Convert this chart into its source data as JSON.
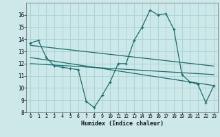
{
  "xlabel": "Humidex (Indice chaleur)",
  "background_color": "#cce8e8",
  "line_color": "#1a6b6b",
  "grid_color": "#aad4d4",
  "xlim": [
    -0.5,
    23.5
  ],
  "ylim": [
    8,
    17
  ],
  "yticks": [
    8,
    9,
    10,
    11,
    12,
    13,
    14,
    15,
    16
  ],
  "xticks": [
    0,
    1,
    2,
    3,
    4,
    5,
    6,
    7,
    8,
    9,
    10,
    11,
    12,
    13,
    14,
    15,
    16,
    17,
    18,
    19,
    20,
    21,
    22,
    23
  ],
  "series1": [
    13.7,
    13.9,
    12.5,
    11.8,
    11.7,
    11.6,
    11.5,
    8.9,
    8.4,
    9.4,
    10.5,
    12.0,
    12.0,
    13.9,
    15.0,
    16.4,
    16.0,
    16.1,
    14.8,
    11.1,
    10.5,
    10.3,
    8.8,
    10.2
  ],
  "series2_x": [
    0,
    23
  ],
  "series2_y": [
    13.5,
    11.8
  ],
  "series3_x": [
    0,
    23
  ],
  "series3_y": [
    12.5,
    10.2
  ],
  "series4_x": [
    0,
    23
  ],
  "series4_y": [
    12.0,
    11.1
  ]
}
